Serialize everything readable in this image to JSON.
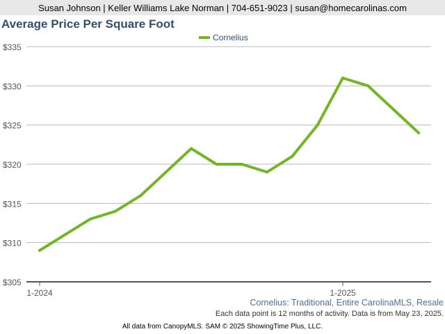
{
  "header": {
    "contact": "Susan Johnson | Keller Williams Lake Norman | 704-651-9023 | susan@homecarolinas.com"
  },
  "chart_data": {
    "type": "line",
    "title": "Average Price Per Square Foot",
    "x": [
      "1-2024",
      "2-2024",
      "3-2024",
      "4-2024",
      "5-2024",
      "6-2024",
      "7-2024",
      "8-2024",
      "9-2024",
      "10-2024",
      "11-2024",
      "12-2024",
      "1-2025",
      "2-2025",
      "3-2025",
      "4-2025"
    ],
    "x_tick_labels": [
      "1-2024",
      "1-2025"
    ],
    "series": [
      {
        "name": "Cornelius",
        "color": "#72b626",
        "values": [
          309,
          311,
          313,
          314,
          316,
          319,
          322,
          320,
          320,
          319,
          321,
          325,
          331,
          330,
          327,
          324
        ]
      }
    ],
    "ylim": [
      305,
      335
    ],
    "y_ticks": [
      305,
      310,
      315,
      320,
      325,
      330,
      335
    ],
    "y_tick_labels": [
      "$305",
      "$310",
      "$315",
      "$320",
      "$325",
      "$330",
      "$335"
    ],
    "grid": true,
    "legend": "top-center"
  },
  "notes": {
    "subtitle": "Cornelius: Traditional, Entire CarolinaMLS, Resale",
    "info": "Each data point is 12 months of activity. Data is from May 23, 2025."
  },
  "footer": {
    "text": "All data from CanopyMLS. SAM © 2025 ShowingTime Plus, LLC."
  }
}
